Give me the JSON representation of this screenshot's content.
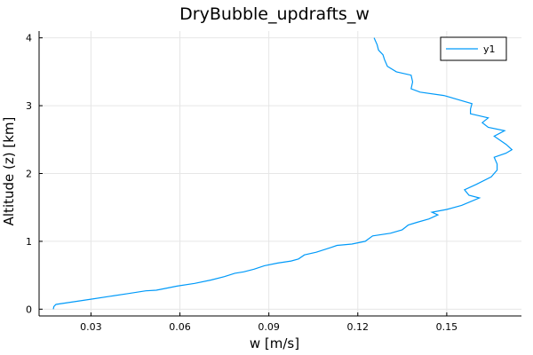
{
  "chart_data": {
    "type": "line",
    "title": "DryBubble_updrafts_w",
    "xlabel": "w [m/s]",
    "ylabel": "Altitude (z) [km]",
    "xlim": [
      0.0125,
      0.1752
    ],
    "ylim": [
      -0.1,
      4.1
    ],
    "xticks": [
      0.03,
      0.06,
      0.09,
      0.12,
      0.15
    ],
    "xtick_labels": [
      "0.03",
      "0.06",
      "0.09",
      "0.12",
      "0.15"
    ],
    "yticks": [
      0,
      1,
      2,
      3,
      4
    ],
    "ytick_labels": [
      "0",
      "1",
      "2",
      "3",
      "4"
    ],
    "grid": true,
    "legend_position": "top-right",
    "colors": {
      "series": "#009af9",
      "axis": "#000000",
      "grid": "#e6e6e6"
    },
    "series": [
      {
        "name": "y1",
        "points": [
          [
            0.0173,
            0.0
          ],
          [
            0.0175,
            0.04
          ],
          [
            0.0182,
            0.07
          ],
          [
            0.0245,
            0.11
          ],
          [
            0.0305,
            0.15
          ],
          [
            0.0365,
            0.19
          ],
          [
            0.0425,
            0.23
          ],
          [
            0.0485,
            0.27
          ],
          [
            0.052,
            0.28
          ],
          [
            0.0545,
            0.3
          ],
          [
            0.059,
            0.34
          ],
          [
            0.065,
            0.38
          ],
          [
            0.0705,
            0.43
          ],
          [
            0.075,
            0.48
          ],
          [
            0.0785,
            0.53
          ],
          [
            0.0815,
            0.55
          ],
          [
            0.085,
            0.59
          ],
          [
            0.0885,
            0.64
          ],
          [
            0.093,
            0.68
          ],
          [
            0.0975,
            0.71
          ],
          [
            0.1,
            0.74
          ],
          [
            0.102,
            0.8
          ],
          [
            0.106,
            0.84
          ],
          [
            0.111,
            0.91
          ],
          [
            0.113,
            0.94
          ],
          [
            0.118,
            0.96
          ],
          [
            0.1225,
            1.0
          ],
          [
            0.125,
            1.08
          ],
          [
            0.131,
            1.12
          ],
          [
            0.135,
            1.17
          ],
          [
            0.137,
            1.24
          ],
          [
            0.14,
            1.28
          ],
          [
            0.144,
            1.33
          ],
          [
            0.147,
            1.39
          ],
          [
            0.145,
            1.43
          ],
          [
            0.15,
            1.47
          ],
          [
            0.155,
            1.53
          ],
          [
            0.161,
            1.64
          ],
          [
            0.1575,
            1.68
          ],
          [
            0.156,
            1.76
          ],
          [
            0.16,
            1.84
          ],
          [
            0.165,
            1.95
          ],
          [
            0.167,
            2.05
          ],
          [
            0.167,
            2.14
          ],
          [
            0.166,
            2.24
          ],
          [
            0.17,
            2.3
          ],
          [
            0.172,
            2.35
          ],
          [
            0.17,
            2.43
          ],
          [
            0.166,
            2.55
          ],
          [
            0.1695,
            2.63
          ],
          [
            0.164,
            2.68
          ],
          [
            0.162,
            2.75
          ],
          [
            0.164,
            2.82
          ],
          [
            0.158,
            2.88
          ],
          [
            0.158,
            2.95
          ],
          [
            0.1585,
            3.03
          ],
          [
            0.153,
            3.1
          ],
          [
            0.149,
            3.15
          ],
          [
            0.141,
            3.2
          ],
          [
            0.138,
            3.25
          ],
          [
            0.1385,
            3.35
          ],
          [
            0.138,
            3.45
          ],
          [
            0.133,
            3.5
          ],
          [
            0.13,
            3.58
          ],
          [
            0.129,
            3.68
          ],
          [
            0.1285,
            3.75
          ],
          [
            0.127,
            3.82
          ],
          [
            0.1265,
            3.9
          ],
          [
            0.1255,
            4.0
          ]
        ]
      }
    ]
  }
}
